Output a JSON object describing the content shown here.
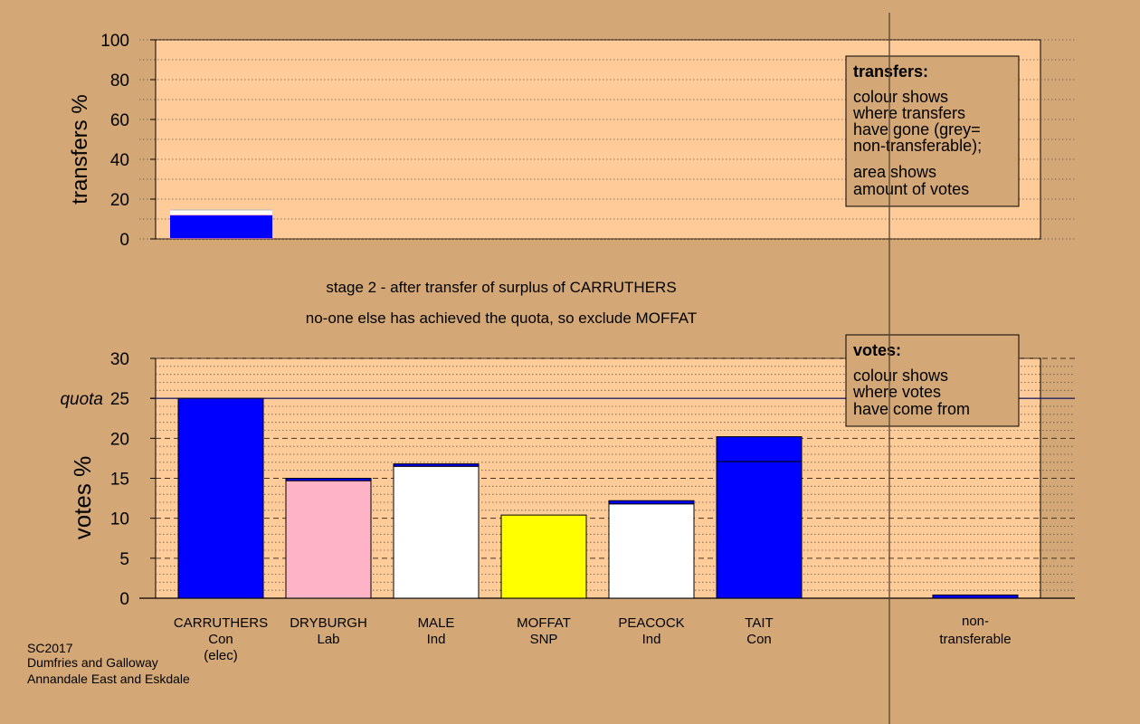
{
  "chart_data": [
    {
      "type": "bar",
      "ylabel": "transfers %",
      "ylim": [
        0,
        100
      ],
      "yticks": [
        0,
        20,
        40,
        60,
        80,
        100
      ],
      "bars": [
        {
          "from": "CARRUTHERS",
          "segments": [
            {
              "label": "non-transferable",
              "value": 0.3,
              "color": "#ff8080"
            },
            {
              "label": "TAIT",
              "value": 11.5,
              "color": "#0000ff"
            },
            {
              "label": "DRYBURGH",
              "value": 0.5,
              "color": "#ffb3c6"
            },
            {
              "label": "MALE",
              "value": 1.0,
              "color": "#ffffff"
            },
            {
              "label": "PEACOCK",
              "value": 1.0,
              "color": "#ffffff"
            },
            {
              "label": "grey",
              "value": 0.5,
              "color": "#bbbbbb"
            }
          ]
        }
      ],
      "legend": {
        "title": "transfers:",
        "lines1": [
          "colour shows",
          "where transfers",
          "have gone (grey=",
          "non-transferable);"
        ],
        "lines2": [
          "area shows",
          "amount of votes"
        ]
      }
    },
    {
      "type": "bar",
      "ylabel": "votes %",
      "ylim": [
        0,
        30
      ],
      "yticks": [
        0,
        5,
        10,
        15,
        20,
        25,
        30
      ],
      "quota": 25,
      "quota_label": "quota",
      "categories": [
        {
          "name": "CARRUTHERS",
          "party": "Con",
          "extra": "(elec)"
        },
        {
          "name": "DRYBURGH",
          "party": "Lab",
          "extra": ""
        },
        {
          "name": "MALE",
          "party": "Ind",
          "extra": ""
        },
        {
          "name": "MOFFAT",
          "party": "SNP",
          "extra": ""
        },
        {
          "name": "PEACOCK",
          "party": "Ind",
          "extra": ""
        },
        {
          "name": "TAIT",
          "party": "Con",
          "extra": ""
        }
      ],
      "stacks": [
        [
          {
            "value": 25.0,
            "color": "#0000ff"
          }
        ],
        [
          {
            "value": 14.7,
            "color": "#ffb3c6"
          },
          {
            "value": 0.3,
            "color": "#0000ff"
          }
        ],
        [
          {
            "value": 16.5,
            "color": "#ffffff"
          },
          {
            "value": 0.3,
            "color": "#0000ff"
          }
        ],
        [
          {
            "value": 10.4,
            "color": "#ffff00"
          }
        ],
        [
          {
            "value": 11.8,
            "color": "#ffffff"
          },
          {
            "value": 0.4,
            "color": "#0000ff"
          }
        ],
        [
          {
            "value": 17.1,
            "color": "#0000ff"
          },
          {
            "value": 3.1,
            "color": "#0000ff"
          }
        ]
      ],
      "nontransferable": {
        "label1": "non-",
        "label2": "transferable",
        "value": 0.4,
        "color": "#0000ff"
      },
      "legend": {
        "title": "votes:",
        "lines": [
          "colour shows",
          "where votes",
          "have come from"
        ]
      }
    }
  ],
  "notes": {
    "line1": "stage 2 - after transfer of surplus of CARRUTHERS",
    "line2": "no-one else has achieved the quota, so exclude MOFFAT"
  },
  "footer": [
    "SC2017",
    "Dumfries and Galloway",
    "Annandale East and Eskdale"
  ],
  "colors": {
    "background": "#d4a876",
    "plot": "#ffcc99",
    "accent": "#0000ff"
  }
}
